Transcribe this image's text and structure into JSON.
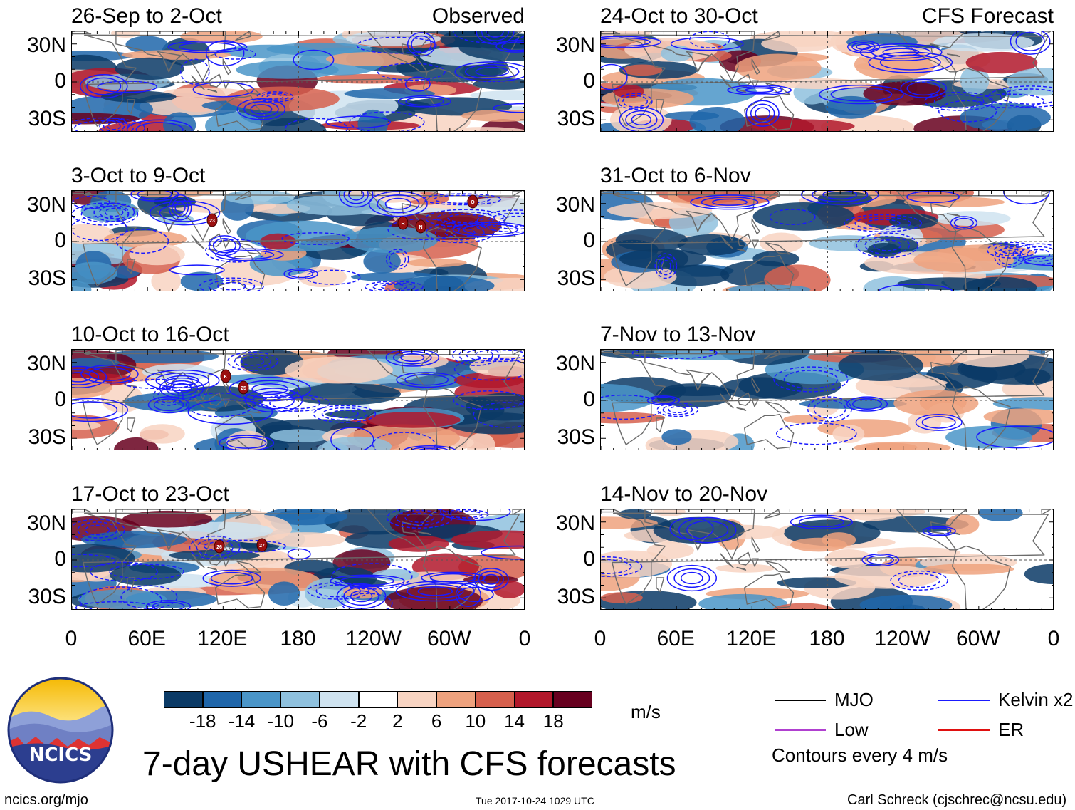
{
  "headers": {
    "observed": "Observed",
    "forecast": "CFS Forecast"
  },
  "panels": [
    {
      "title": "26-Sep to 2-Oct",
      "column": "observed",
      "row": 0,
      "storms": []
    },
    {
      "title": "3-Oct to 9-Oct",
      "column": "observed",
      "row": 1,
      "storms": [
        "23",
        "R",
        "N",
        "O"
      ]
    },
    {
      "title": "10-Oct to 16-Oct",
      "column": "observed",
      "row": 2,
      "storms": [
        "K",
        "25"
      ]
    },
    {
      "title": "17-Oct to 23-Oct",
      "column": "observed",
      "row": 3,
      "storms": [
        "26",
        "27"
      ]
    },
    {
      "title": "24-Oct to 30-Oct",
      "column": "forecast",
      "row": 0,
      "storms": []
    },
    {
      "title": "31-Oct to 6-Nov",
      "column": "forecast",
      "row": 1,
      "storms": []
    },
    {
      "title": "7-Nov to 13-Nov",
      "column": "forecast",
      "row": 2,
      "storms": []
    },
    {
      "title": "14-Nov to 20-Nov",
      "column": "forecast",
      "row": 3,
      "storms": []
    }
  ],
  "lat_labels": [
    "30N",
    "0",
    "30S"
  ],
  "lon_labels": [
    "0",
    "60E",
    "120E",
    "180",
    "120W",
    "60W",
    "0"
  ],
  "colorbar": {
    "labels": [
      "-18",
      "-14",
      "-10",
      "-6",
      "-2",
      "2",
      "6",
      "10",
      "14",
      "18"
    ],
    "colors": [
      "#0b3a66",
      "#1f66aa",
      "#4a95c8",
      "#8fc1de",
      "#cfe3f0",
      "#ffffff",
      "#f8d4c2",
      "#eea27e",
      "#d6604d",
      "#b2182b",
      "#67001f"
    ],
    "units": "m/s"
  },
  "legend": {
    "items": [
      {
        "label": "MJO",
        "color": "#000000"
      },
      {
        "label": "Kelvin x2",
        "color": "#1a1aff"
      },
      {
        "label": "Low",
        "color": "#b040d0"
      },
      {
        "label": "ER",
        "color": "#e01010"
      }
    ],
    "note": "Contours every 4 m/s"
  },
  "title": "7-day USHEAR with CFS forecasts",
  "logo_text": "NCICS",
  "footer": {
    "left": "ncics.org/mjo",
    "center": "Tue 2017-10-24 1029 UTC",
    "right": "Carl Schreck (cjschrec@ncsu.edu)"
  }
}
